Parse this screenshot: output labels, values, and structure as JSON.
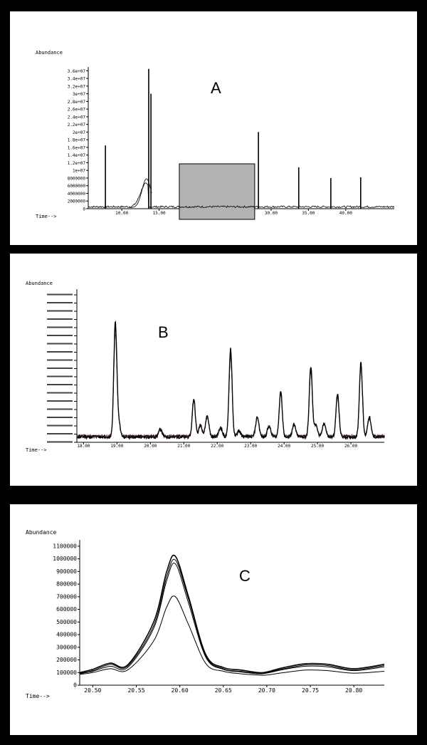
{
  "panels": [
    {
      "id": "A",
      "label": "A",
      "y_axis_title": "Abundance",
      "x_axis_title": "Time-->"
    },
    {
      "id": "B",
      "label": "B",
      "y_axis_title": "Abundance",
      "x_axis_title": "Time-->"
    },
    {
      "id": "C",
      "label": "C",
      "y_axis_title": "Abundance",
      "x_axis_title": "Time-->"
    }
  ],
  "colors": {
    "background": "#000000",
    "panel": "#ffffff",
    "trace": "#000000",
    "highlight": "#b3b3b3"
  },
  "chart_data": [
    {
      "type": "line",
      "title": "A",
      "ylabel": "Abundance",
      "xlabel": "Time-->",
      "x_ticks": [
        "10.00",
        "15.00",
        "20.00",
        "25.00",
        "30.00",
        "35.00",
        "40.00"
      ],
      "y_ticks": [
        "0",
        "2000000",
        "4000000",
        "6000000",
        "8000000",
        "1e+07",
        "1.2e+07",
        "1.4e+07",
        "1.6e+07",
        "1.8e+07",
        "2e+07",
        "2.2e+07",
        "2.4e+07",
        "2.6e+07",
        "2.8e+07",
        "3e+07",
        "3.2e+07",
        "3.4e+07",
        "3.6e+07"
      ],
      "xlim": [
        5.5,
        46.5
      ],
      "ylim": [
        0,
        37000000
      ],
      "highlight_region": [
        17.7,
        27.8
      ],
      "peaks": [
        {
          "x": 7.8,
          "y": 16500000
        },
        {
          "x": 13.6,
          "y": 36500000
        },
        {
          "x": 13.9,
          "y": 30000000
        },
        {
          "x": 28.3,
          "y": 20000000
        },
        {
          "x": 33.7,
          "y": 10800000
        },
        {
          "x": 38.0,
          "y": 8000000
        },
        {
          "x": 42.0,
          "y": 8200000
        }
      ]
    },
    {
      "type": "line",
      "title": "B",
      "ylabel": "Abundance",
      "xlabel": "Time-->",
      "x_ticks": [
        "18.00",
        "19.00",
        "20.00",
        "21.00",
        "22.00",
        "23.00",
        "24.00",
        "25.00",
        "26.00"
      ],
      "xlim": [
        17.8,
        27.0
      ],
      "ylim": [
        0,
        1000
      ],
      "peaks": [
        {
          "x": 18.95,
          "y": 740
        },
        {
          "x": 21.3,
          "y": 250
        },
        {
          "x": 22.4,
          "y": 580
        },
        {
          "x": 23.9,
          "y": 300
        },
        {
          "x": 24.8,
          "y": 460
        },
        {
          "x": 25.6,
          "y": 280
        },
        {
          "x": 26.3,
          "y": 490
        }
      ]
    },
    {
      "type": "line",
      "title": "C",
      "ylabel": "Abundance",
      "xlabel": "Time-->",
      "x_ticks": [
        "20.50",
        "20.55",
        "20.60",
        "20.65",
        "20.70",
        "20.75",
        "20.80"
      ],
      "y_ticks": [
        "0",
        "100000",
        "200000",
        "300000",
        "400000",
        "500000",
        "600000",
        "700000",
        "800000",
        "900000",
        "1000000",
        "1100000"
      ],
      "xlim": [
        20.485,
        20.835
      ],
      "ylim": [
        0,
        1150000
      ],
      "series": [
        {
          "x": [
            20.485,
            20.5,
            20.52,
            20.54,
            20.57,
            20.585,
            20.595,
            20.61,
            20.63,
            20.65,
            20.67,
            20.69,
            20.7,
            20.72,
            20.745,
            20.77,
            20.8,
            20.835
          ],
          "values": [
            100000,
            125000,
            175000,
            160000,
            500000,
            900000,
            1020000,
            700000,
            240000,
            140000,
            120000,
            100000,
            105000,
            140000,
            170000,
            165000,
            130000,
            165000
          ]
        },
        {
          "x": [
            20.485,
            20.5,
            20.52,
            20.54,
            20.57,
            20.585,
            20.595,
            20.61,
            20.63,
            20.65,
            20.67,
            20.69,
            20.7,
            20.72,
            20.745,
            20.77,
            20.8,
            20.835
          ],
          "values": [
            95000,
            115000,
            165000,
            150000,
            470000,
            860000,
            990000,
            680000,
            230000,
            130000,
            110000,
            95000,
            100000,
            130000,
            160000,
            155000,
            120000,
            155000
          ]
        },
        {
          "x": [
            20.485,
            20.5,
            20.52,
            20.54,
            20.57,
            20.585,
            20.595,
            20.61,
            20.63,
            20.65,
            20.67,
            20.69,
            20.7,
            20.72,
            20.745,
            20.77,
            20.8,
            20.835
          ],
          "values": [
            90000,
            110000,
            150000,
            140000,
            450000,
            830000,
            960000,
            650000,
            220000,
            125000,
            105000,
            90000,
            95000,
            125000,
            150000,
            145000,
            115000,
            145000
          ]
        },
        {
          "x": [
            20.485,
            20.5,
            20.52,
            20.54,
            20.57,
            20.585,
            20.595,
            20.61,
            20.63,
            20.65,
            20.67,
            20.69,
            20.7,
            20.72,
            20.745,
            20.77,
            20.8,
            20.835
          ],
          "values": [
            85000,
            100000,
            130000,
            120000,
            350000,
            620000,
            700000,
            480000,
            170000,
            110000,
            90000,
            80000,
            80000,
            100000,
            120000,
            115000,
            95000,
            110000
          ]
        }
      ]
    }
  ]
}
